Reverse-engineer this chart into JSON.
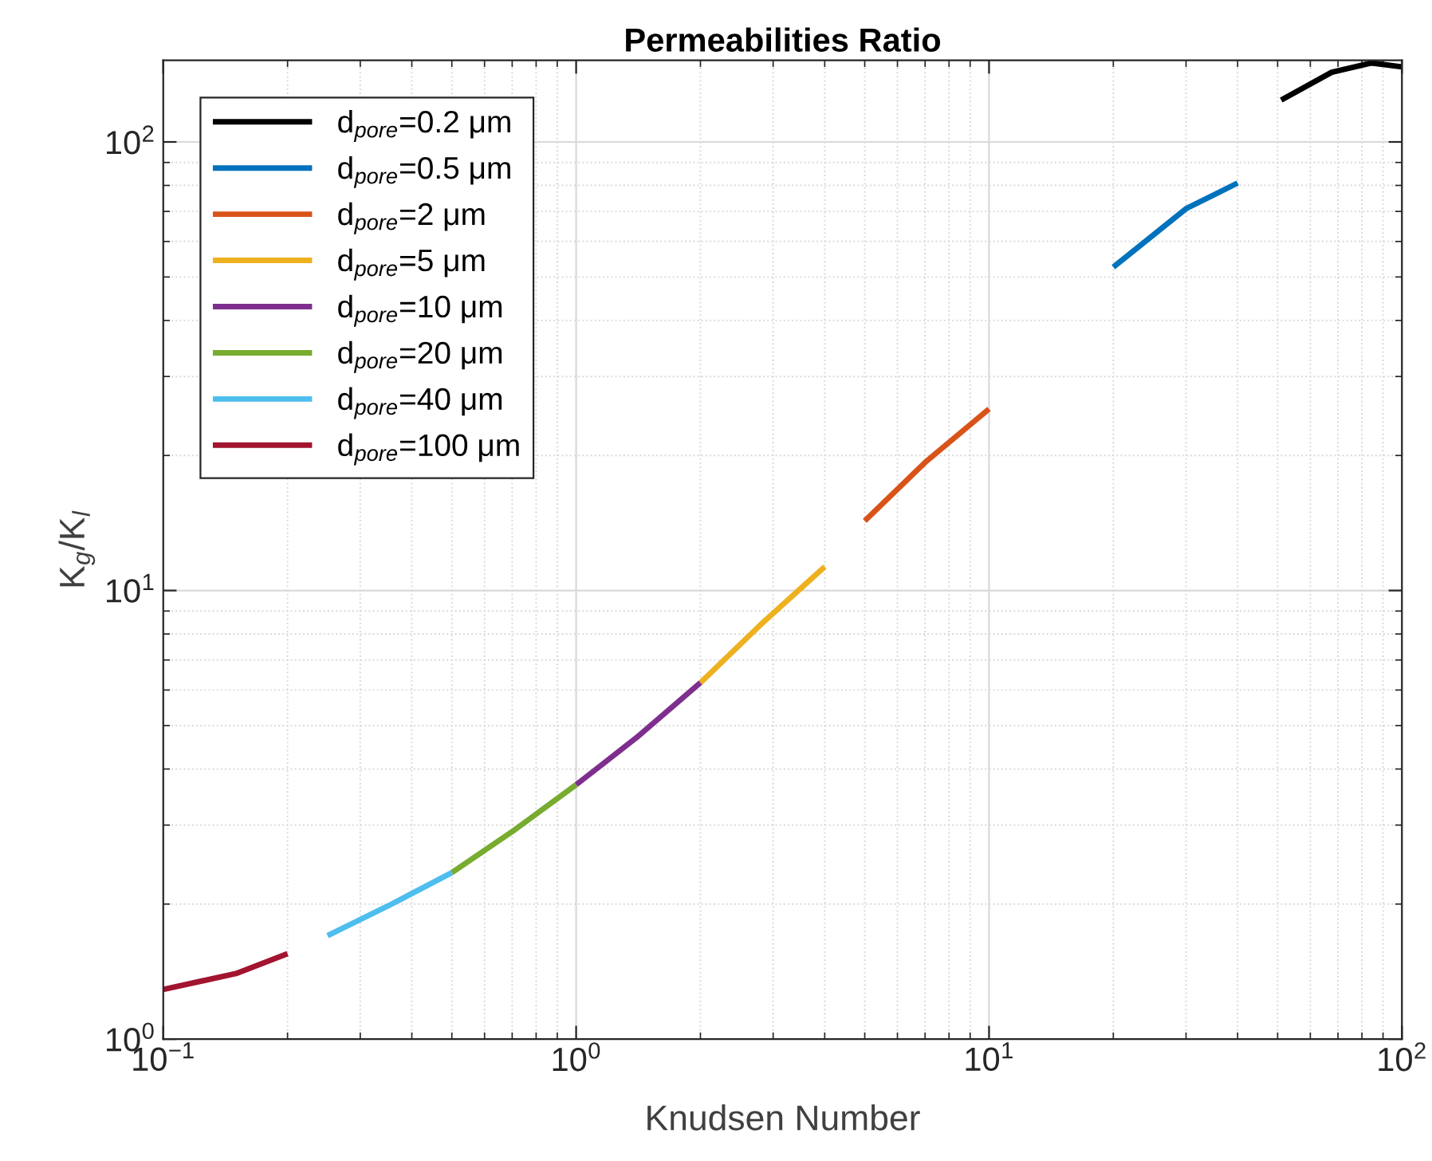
{
  "chart_data": {
    "type": "line",
    "title": "Permeabilities Ratio",
    "xlabel": "Knudsen Number",
    "ylabel": "K$_{g}$/K$_{l}$",
    "log": "xy",
    "xlim": [
      0.1,
      100
    ],
    "ylim": [
      1,
      152
    ],
    "xticks": [
      {
        "value": 0.1,
        "label": "10$^{−1}$"
      },
      {
        "value": 1,
        "label": "10$^{0}$"
      },
      {
        "value": 10,
        "label": "10$^{1}$"
      },
      {
        "value": 100,
        "label": "10$^{2}$"
      }
    ],
    "yticks": [
      {
        "value": 1,
        "label": "10$^{0}$"
      },
      {
        "value": 10,
        "label": "10$^{1}$"
      },
      {
        "value": 100,
        "label": "10$^{2}$"
      }
    ],
    "grid": true,
    "legend": "top left",
    "line_style": "solid",
    "marker": "none",
    "series": [
      {
        "name": "d$_{pore}$=0.2 μm",
        "color": "#000000",
        "x": [
          51,
          67.6,
          84.5,
          100
        ],
        "values": [
          124,
          143,
          150,
          147
        ]
      },
      {
        "name": "d$_{pore}$=0.5 μm",
        "color": "#0072bd",
        "x": [
          20,
          30,
          40
        ],
        "values": [
          52.6,
          71,
          81
        ]
      },
      {
        "name": "d$_{pore}$=2 μm",
        "color": "#d95319",
        "x": [
          5,
          7,
          10
        ],
        "values": [
          14.3,
          19.3,
          25.4
        ]
      },
      {
        "name": "d$_{pore}$=5 μm",
        "color": "#edb120",
        "x": [
          2,
          2.8,
          4
        ],
        "values": [
          6.23,
          8.4,
          11.3
        ]
      },
      {
        "name": "d$_{pore}$=10 μm",
        "color": "#7e2f8e",
        "x": [
          1,
          1.4,
          2
        ],
        "values": [
          3.69,
          4.7,
          6.23
        ]
      },
      {
        "name": "d$_{pore}$=20 μm",
        "color": "#77ac30",
        "x": [
          0.5,
          0.7,
          1
        ],
        "values": [
          2.35,
          2.9,
          3.69
        ]
      },
      {
        "name": "d$_{pore}$=40 μm",
        "color": "#4dbeee",
        "x": [
          0.25,
          0.35,
          0.5
        ],
        "values": [
          1.7,
          1.98,
          2.35
        ]
      },
      {
        "name": "d$_{pore}$=100 μm",
        "color": "#a2142f",
        "x": [
          0.1,
          0.15,
          0.2
        ],
        "values": [
          1.29,
          1.4,
          1.55
        ]
      }
    ]
  }
}
